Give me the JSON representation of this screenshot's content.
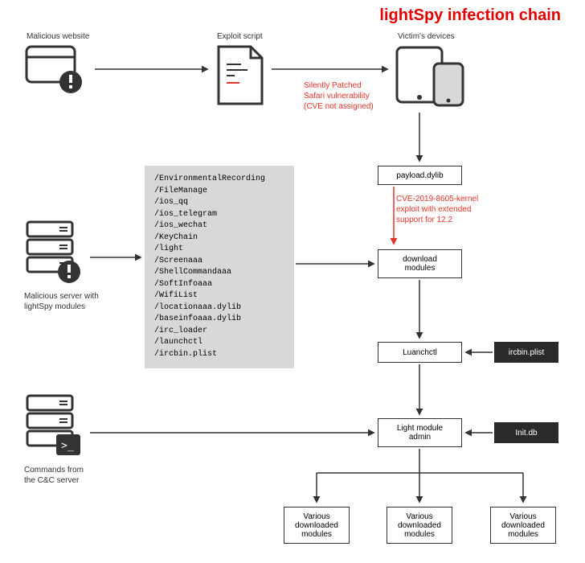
{
  "title": "lightSpy infection chain",
  "colors": {
    "title": "#e60000",
    "red_annot": "#e6332a",
    "stroke": "#333333",
    "dark_fill": "#2a2a2a",
    "modules_bg": "#d8d8d8",
    "page_bg": "#ffffff"
  },
  "labels": {
    "malicious_website": "Malicious website",
    "exploit_script": "Exploit script",
    "victims_devices": "Victim's devices",
    "malicious_server": "Malicious server with\nlightSpy modules",
    "commands_cc": "Commands from\nthe C&C server"
  },
  "annotations": {
    "safari": "Silently Patched\nSafari vulnerability\n(CVE not assigned)",
    "kernel": "CVE-2019-8605-kernel\nexploit with extended\nsupport for 12.2"
  },
  "boxes": {
    "payload": "payload.dylib",
    "download_modules": "download\nmodules",
    "luanchctl": "Luanchctl",
    "light_module_admin": "Light module\nadmin",
    "ircbin": "ircbin.plist",
    "init_db": "Init.db",
    "various": "Various\ndownloaded\nmodules"
  },
  "modules_list": [
    "/EnvironmentalRecording",
    "/FileManage",
    "/ios_qq",
    "/ios_telegram",
    "/ios_wechat",
    "/KeyChain",
    "/light",
    "/Screenaaa",
    "/ShellCommandaaa",
    "/SoftInfoaaa",
    "/WifiList",
    "/locationaaa.dylib",
    "/baseinfoaaa.dylib",
    "/irc_loader",
    "/launchctl",
    "/ircbin.plist"
  ]
}
